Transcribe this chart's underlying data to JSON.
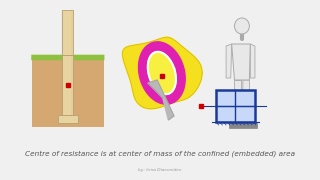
{
  "bg_color": "#f0f0f0",
  "title_text": "Centre of resistance is at center of mass of the confined (embedded) area",
  "credit_text": "by: Irina Diaconides",
  "text_color": "#555555",
  "title_fontsize": 5.2,
  "credit_fontsize": 3.2,
  "red_dot_color": "#cc0000",
  "pile_color": "#e8d4a0",
  "pile_outline": "#b8a070",
  "ground_color": "#d4a870",
  "grass_color": "#90c040",
  "human_outline": "#aaaaaa",
  "human_fill": "#e8e8e8",
  "box_color": "#1a3a9a",
  "box_fill": "#c8d8f8",
  "yellow_blob": "#f5e020",
  "yellow_blob_edge": "#d4b800",
  "magenta_color": "#e020b0",
  "inner_yellow": "#f8f040",
  "bone_tip_color": "#b8b8b8"
}
